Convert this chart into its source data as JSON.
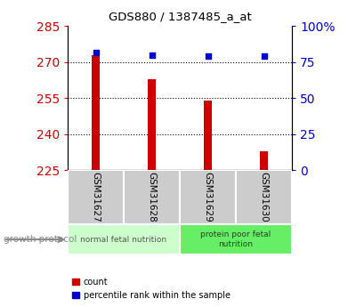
{
  "title": "GDS880 / 1387485_a_at",
  "samples": [
    "GSM31627",
    "GSM31628",
    "GSM31629",
    "GSM31630"
  ],
  "bar_values": [
    273.0,
    263.0,
    254.0,
    233.0
  ],
  "bar_base": 225,
  "percentile_values": [
    82,
    80,
    79,
    79
  ],
  "ylim_left": [
    225,
    285
  ],
  "ylim_right": [
    0,
    100
  ],
  "yticks_left": [
    225,
    240,
    255,
    270,
    285
  ],
  "yticks_right": [
    0,
    25,
    50,
    75,
    100
  ],
  "bar_color": "#cc0000",
  "percentile_color": "#0000cc",
  "group1_label": "normal fetal nutrition",
  "group2_label": "protein poor fetal\nnutrition",
  "group1_color": "#ccffcc",
  "group2_color": "#66ee66",
  "tick_label_color_left": "#cc0000",
  "tick_label_color_right": "#0000cc",
  "xlabel_protocol": "growth protocol",
  "legend_count": "count",
  "legend_percentile": "percentile rank within the sample",
  "bar_width": 0.15
}
